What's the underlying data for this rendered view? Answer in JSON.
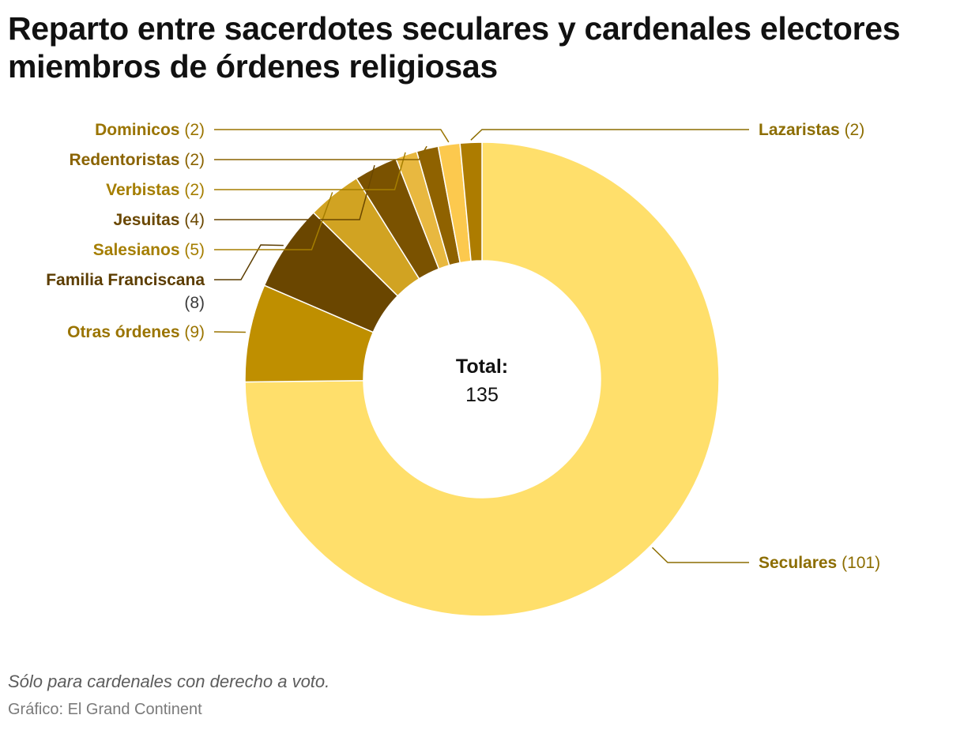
{
  "chart_data": {
    "type": "pie",
    "title": "Reparto entre sacerdotes seculares y cardenales electores miembros de órdenes religiosas",
    "center_label": "Total:",
    "center_value": "135",
    "slices": [
      {
        "label": "Seculares",
        "value": 101,
        "value_text": "(101)",
        "color": "#ffdf6b"
      },
      {
        "label": "Otras órdenes",
        "value": 9,
        "value_text": "(9)",
        "color": "#bf8f00"
      },
      {
        "label": "Familia Franciscana",
        "value": 8,
        "value_text": "(8)",
        "color": "#6a4600"
      },
      {
        "label": "Salesianos",
        "value": 5,
        "value_text": "(5)",
        "color": "#d1a322"
      },
      {
        "label": "Jesuitas",
        "value": 4,
        "value_text": "(4)",
        "color": "#7a5200"
      },
      {
        "label": "Verbistas",
        "value": 2,
        "value_text": "(2)",
        "color": "#e8b840"
      },
      {
        "label": "Redentoristas",
        "value": 2,
        "value_text": "(2)",
        "color": "#8f6200"
      },
      {
        "label": "Dominicos",
        "value": 2,
        "value_text": "(2)",
        "color": "#fcc94e"
      },
      {
        "label": "Lazaristas",
        "value": 2,
        "value_text": "(2)",
        "color": "#ad7c00"
      }
    ],
    "label_colors": {
      "Seculares": "#8c6d00",
      "Otras órdenes": "#9a7400",
      "Familia Franciscana": "#5c3d00",
      "Salesianos": "#a57e00",
      "Jesuitas": "#6a4700",
      "Verbistas": "#a57e00",
      "Redentoristas": "#8a6300",
      "Dominicos": "#9a7400",
      "Lazaristas": "#8c6d00"
    }
  },
  "footnote": "Sólo para cardenales con derecho a voto.",
  "source": "Gráfico: El Grand Continent"
}
